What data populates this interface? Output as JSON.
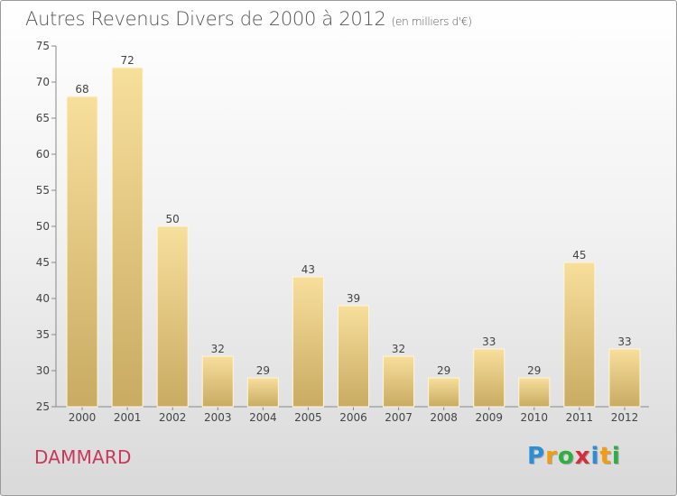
{
  "header": {
    "title": "Autres Revenus Divers de 2000 à 2012",
    "subtitle": "(en milliers d'€)"
  },
  "footer": {
    "commune": "DAMMARD",
    "brand": "Proxiti",
    "brand_letters": [
      "P",
      "r",
      "o",
      "x",
      "i",
      "t",
      "i"
    ],
    "brand_colors": [
      "#2c8fd6",
      "#f39c12",
      "#2fae44",
      "#d62d3a",
      "#2c8fd6",
      "#f39c12",
      "#2fae44"
    ]
  },
  "chart_data": {
    "type": "bar",
    "categories": [
      "2000",
      "2001",
      "2002",
      "2003",
      "2004",
      "2005",
      "2006",
      "2007",
      "2008",
      "2009",
      "2010",
      "2011",
      "2012"
    ],
    "values": [
      68,
      72,
      50,
      32,
      29,
      43,
      39,
      32,
      29,
      33,
      29,
      45,
      33
    ],
    "ylim": [
      25,
      75
    ],
    "yticks": [
      25,
      30,
      35,
      40,
      45,
      50,
      55,
      60,
      65,
      70,
      75
    ],
    "grid": false,
    "legend": "none",
    "bar_color_top": "#f7df9c",
    "bar_color_bottom": "#c9ab62",
    "axis_color": "#888888"
  }
}
